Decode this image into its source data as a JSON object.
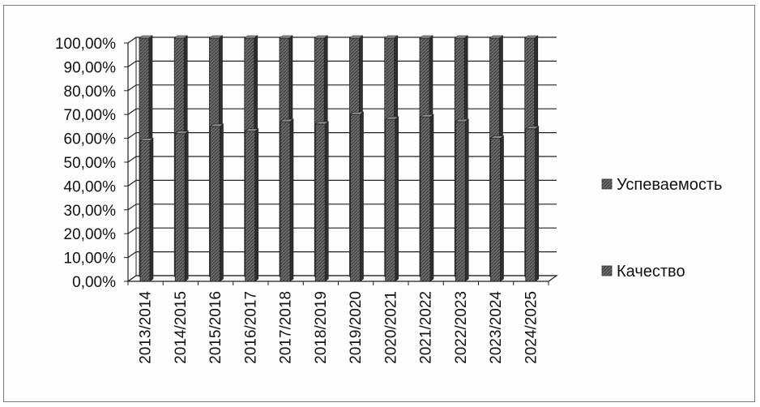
{
  "chart_data": {
    "type": "bar",
    "categories": [
      "2013/2014",
      "2014/2015",
      "2015/2016",
      "2016/2017",
      "2017/2018",
      "2018/2019",
      "2019/2020",
      "2020/2021",
      "2021/2022",
      "2022/2023",
      "2023/2024",
      "2024/2025"
    ],
    "series": [
      {
        "name": "Успеваемость",
        "values": [
          100,
          100,
          100,
          100,
          100,
          100,
          100,
          100,
          100,
          100,
          100,
          100
        ]
      },
      {
        "name": "Качество",
        "values": [
          59,
          62,
          65,
          63,
          67,
          66,
          70,
          68,
          69,
          67,
          60,
          64
        ]
      }
    ],
    "title": "",
    "xlabel": "",
    "ylabel": "",
    "ylim": [
      0,
      100
    ],
    "yticks": [
      "0,00%",
      "10,00%",
      "20,00%",
      "30,00%",
      "40,00%",
      "50,00%",
      "60,00%",
      "70,00%",
      "80,00%",
      "90,00%",
      "100,00%"
    ],
    "grid": true,
    "legend": "right",
    "style": "3d-clustered-column",
    "colors": {
      "success": "#5a5a5a",
      "quality": "#5a5a5a",
      "grid": "#222222"
    }
  }
}
